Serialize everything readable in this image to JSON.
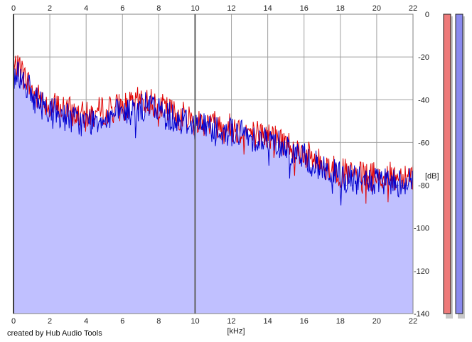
{
  "footer": {
    "credit": "created by Hub Audio Tools"
  },
  "chart_data": {
    "type": "line",
    "xlabel": "[kHz]",
    "ylabel": "[dB]",
    "xlim": [
      0,
      22
    ],
    "ylim": [
      -140,
      0
    ],
    "x_ticks": [
      0,
      2,
      4,
      6,
      8,
      10,
      12,
      14,
      16,
      18,
      20,
      22
    ],
    "y_ticks": [
      0,
      -20,
      -40,
      -60,
      -80,
      -100,
      -120,
      -140
    ],
    "grid": true,
    "fill_below": true,
    "colors": {
      "left": "#e00000",
      "right": "#0000d0",
      "fill": "#c0c0ff",
      "left_meter": "#ee7a7a",
      "right_meter": "#8a8aee"
    },
    "series": [
      {
        "color": "#e00000",
        "x": [
          0.0,
          0.25,
          0.5,
          0.75,
          1.0,
          1.5,
          2.0,
          2.5,
          3.0,
          3.5,
          4.0,
          4.5,
          5.0,
          5.5,
          6.0,
          6.5,
          7.0,
          7.5,
          8.0,
          8.5,
          9.0,
          9.5,
          10.0,
          10.5,
          11.0,
          11.5,
          12.0,
          12.5,
          13.0,
          13.5,
          14.0,
          14.5,
          15.0,
          15.5,
          16.0,
          16.5,
          17.0,
          17.5,
          18.0,
          18.5,
          19.0,
          19.5,
          20.0,
          20.5,
          21.0,
          21.5,
          22.0
        ],
        "y": [
          -27,
          -22,
          -28,
          -31,
          -36,
          -40,
          -42,
          -44,
          -45,
          -47,
          -48,
          -46,
          -45,
          -44,
          -43,
          -43,
          -40,
          -41,
          -43,
          -45,
          -47,
          -48,
          -50,
          -50,
          -51,
          -52,
          -53,
          -54,
          -55,
          -56,
          -57,
          -58,
          -60,
          -63,
          -65,
          -68,
          -70,
          -72,
          -74,
          -75,
          -76,
          -76,
          -76,
          -76,
          -76,
          -75,
          -75
        ]
      },
      {
        "color": "#0000d0",
        "x": [
          0.0,
          0.25,
          0.5,
          0.75,
          1.0,
          1.5,
          2.0,
          2.5,
          3.0,
          3.5,
          4.0,
          4.5,
          5.0,
          5.5,
          6.0,
          6.5,
          7.0,
          7.5,
          8.0,
          8.5,
          9.0,
          9.5,
          10.0,
          10.5,
          11.0,
          11.5,
          12.0,
          12.5,
          13.0,
          13.5,
          14.0,
          14.5,
          15.0,
          15.5,
          16.0,
          16.5,
          17.0,
          17.5,
          18.0,
          18.5,
          19.0,
          19.5,
          20.0,
          20.5,
          21.0,
          21.5,
          22.0
        ],
        "y": [
          -30,
          -27,
          -30,
          -33,
          -38,
          -42,
          -44,
          -47,
          -48,
          -50,
          -51,
          -49,
          -48,
          -47,
          -46,
          -46,
          -44,
          -43,
          -45,
          -47,
          -49,
          -50,
          -52,
          -52,
          -53,
          -54,
          -55,
          -56,
          -57,
          -58,
          -59,
          -60,
          -62,
          -65,
          -67,
          -70,
          -72,
          -74,
          -76,
          -77,
          -78,
          -78,
          -79,
          -79,
          -79,
          -78,
          -78
        ]
      }
    ],
    "meters": [
      {
        "channel": "left",
        "peak_db": 0
      },
      {
        "channel": "right",
        "peak_db": 0
      }
    ]
  }
}
